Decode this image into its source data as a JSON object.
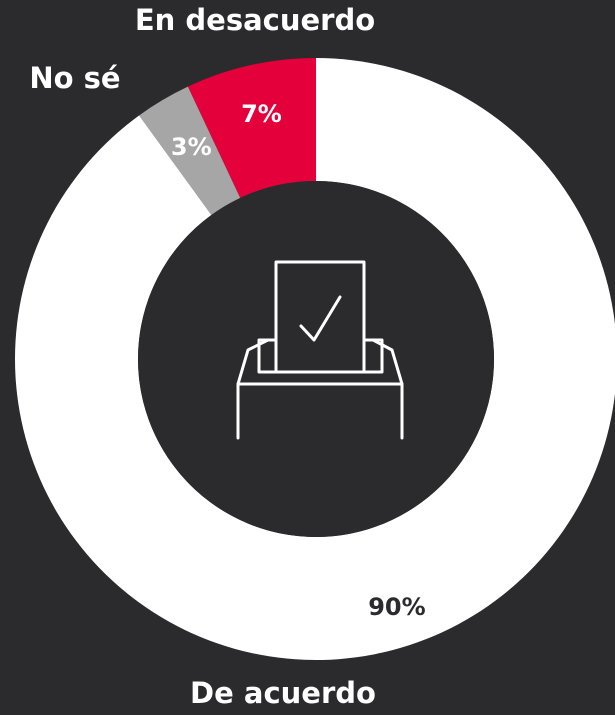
{
  "chart_data": {
    "type": "pie",
    "categories": [
      "En desacuerdo",
      "No sé",
      "De acuerdo"
    ],
    "values": [
      7,
      3,
      90
    ],
    "value_labels": [
      "7%",
      "3%",
      "90%"
    ],
    "colors": [
      "#e4003b",
      "#a6a6a6",
      "#ffffff"
    ],
    "direction": "counterclockwise"
  }
}
